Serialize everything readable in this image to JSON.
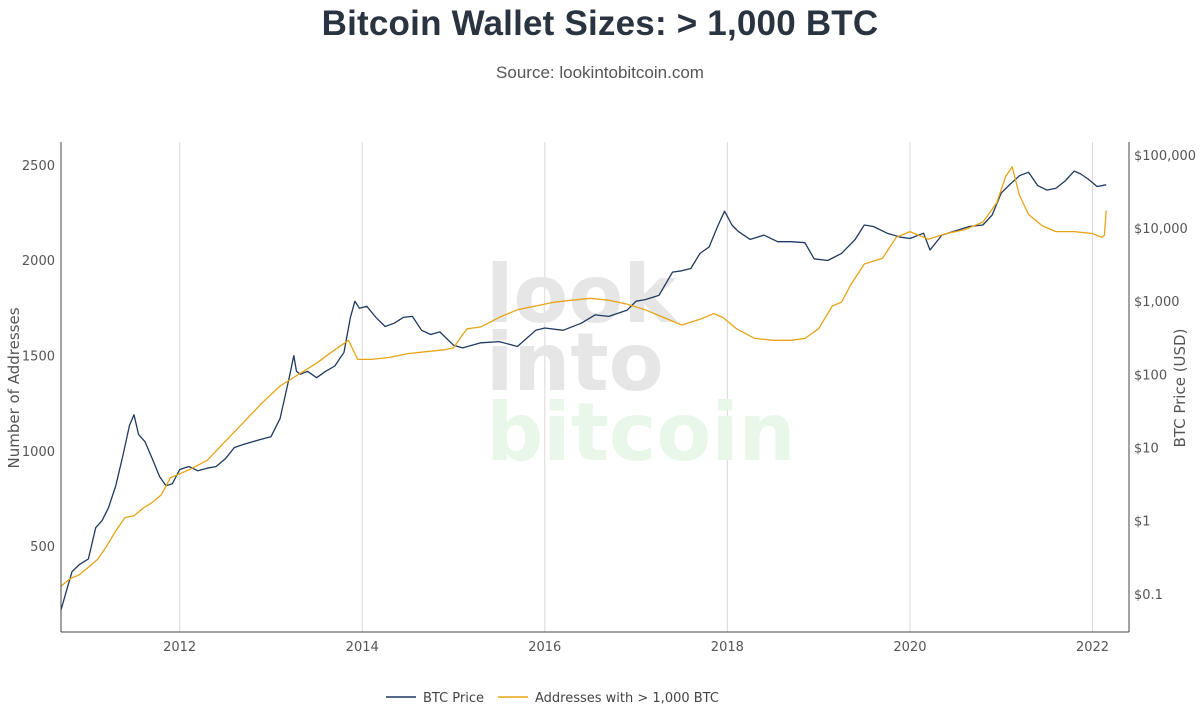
{
  "header": {
    "title": "Bitcoin Wallet Sizes: > 1,000 BTC",
    "subtitle": "Source: lookintobitcoin.com"
  },
  "watermark": {
    "line1": "look",
    "line2": "into",
    "line3": "bitcoin"
  },
  "colors": {
    "price": "#1f3a5f",
    "addresses": "#e8a317",
    "grid": "#d9d9d9",
    "axis": "#444444",
    "watermark_gray": "#e6e6e6",
    "watermark_green": "#e8f7e8"
  },
  "chart_data": {
    "type": "line",
    "title": "Bitcoin Wallet Sizes: > 1,000 BTC",
    "subtitle": "Source: lookintobitcoin.com",
    "x_range": [
      2010.7,
      2022.4
    ],
    "x_ticks": [
      2012,
      2014,
      2016,
      2018,
      2020,
      2022
    ],
    "x_tick_labels": [
      "2012",
      "2014",
      "2016",
      "2018",
      "2020",
      "2022"
    ],
    "y_left": {
      "label": "Number of Addresses",
      "range": [
        50,
        2620
      ],
      "ticks": [
        500,
        1000,
        1500,
        2000,
        2500
      ],
      "tick_labels": [
        "500",
        "1000",
        "1500",
        "2000",
        "2500"
      ]
    },
    "y_right": {
      "label": "BTC Price (USD)",
      "scale": "log",
      "range": [
        0.03,
        150000
      ],
      "ticks": [
        0.1,
        1,
        10,
        100,
        1000,
        10000,
        100000
      ],
      "tick_labels": [
        "$0.1",
        "$1",
        "$10",
        "$100",
        "$1,000",
        "$10,000",
        "$100,000"
      ]
    },
    "grid": "vertical-only",
    "legend_position": "bottom-center",
    "series": [
      {
        "name": "BTC Price",
        "axis": "right",
        "x": [
          2010.7,
          2010.75,
          2010.82,
          2010.9,
          2011.0,
          2011.08,
          2011.15,
          2011.22,
          2011.3,
          2011.38,
          2011.45,
          2011.5,
          2011.55,
          2011.62,
          2011.7,
          2011.78,
          2011.85,
          2011.92,
          2012.0,
          2012.1,
          2012.2,
          2012.3,
          2012.4,
          2012.5,
          2012.6,
          2012.7,
          2012.8,
          2012.9,
          2013.0,
          2013.1,
          2013.2,
          2013.25,
          2013.28,
          2013.32,
          2013.4,
          2013.5,
          2013.6,
          2013.7,
          2013.8,
          2013.87,
          2013.92,
          2013.97,
          2014.05,
          2014.15,
          2014.25,
          2014.35,
          2014.45,
          2014.55,
          2014.65,
          2014.75,
          2014.85,
          2015.0,
          2015.1,
          2015.3,
          2015.5,
          2015.7,
          2015.9,
          2016.0,
          2016.2,
          2016.4,
          2016.55,
          2016.7,
          2016.9,
          2017.0,
          2017.1,
          2017.25,
          2017.4,
          2017.5,
          2017.6,
          2017.7,
          2017.8,
          2017.9,
          2017.97,
          2018.05,
          2018.12,
          2018.25,
          2018.4,
          2018.55,
          2018.7,
          2018.85,
          2018.95,
          2019.1,
          2019.25,
          2019.4,
          2019.5,
          2019.6,
          2019.75,
          2019.9,
          2020.0,
          2020.15,
          2020.22,
          2020.35,
          2020.5,
          2020.65,
          2020.8,
          2020.9,
          2021.0,
          2021.1,
          2021.2,
          2021.3,
          2021.4,
          2021.5,
          2021.6,
          2021.7,
          2021.8,
          2021.87,
          2021.95,
          2022.05,
          2022.15
        ],
        "y": [
          0.06,
          0.1,
          0.2,
          0.25,
          0.3,
          0.8,
          1.0,
          1.5,
          3,
          8,
          20,
          28,
          15,
          12,
          7,
          4,
          3,
          3.2,
          5,
          5.5,
          4.8,
          5.2,
          5.5,
          7,
          10,
          11,
          12,
          13,
          14,
          25,
          90,
          180,
          110,
          100,
          110,
          90,
          110,
          130,
          200,
          600,
          1000,
          800,
          850,
          600,
          450,
          500,
          600,
          620,
          400,
          350,
          380,
          250,
          230,
          270,
          280,
          240,
          400,
          430,
          400,
          500,
          650,
          620,
          750,
          1000,
          1050,
          1200,
          2500,
          2600,
          2800,
          4500,
          5500,
          11000,
          17000,
          11000,
          9000,
          7000,
          8000,
          6500,
          6500,
          6300,
          3800,
          3600,
          4500,
          7000,
          11000,
          10500,
          8500,
          7500,
          7200,
          8500,
          5000,
          8000,
          9200,
          10500,
          11000,
          15000,
          30000,
          40000,
          52000,
          58000,
          38000,
          33000,
          35000,
          44000,
          60000,
          55000,
          47000,
          37000,
          39000
        ]
      },
      {
        "name": "Addresses with > 1,000 BTC",
        "axis": "left",
        "x": [
          2010.7,
          2010.8,
          2010.9,
          2011.0,
          2011.1,
          2011.2,
          2011.3,
          2011.4,
          2011.5,
          2011.6,
          2011.7,
          2011.8,
          2011.9,
          2012.0,
          2012.1,
          2012.3,
          2012.5,
          2012.7,
          2012.9,
          2013.1,
          2013.3,
          2013.5,
          2013.7,
          2013.85,
          2013.95,
          2014.1,
          2014.3,
          2014.5,
          2014.7,
          2014.9,
          2015.0,
          2015.1,
          2015.15,
          2015.3,
          2015.5,
          2015.7,
          2015.9,
          2016.1,
          2016.3,
          2016.5,
          2016.7,
          2016.9,
          2017.1,
          2017.3,
          2017.5,
          2017.7,
          2017.85,
          2017.95,
          2018.1,
          2018.3,
          2018.5,
          2018.7,
          2018.85,
          2019.0,
          2019.15,
          2019.25,
          2019.35,
          2019.5,
          2019.7,
          2019.85,
          2020.0,
          2020.2,
          2020.4,
          2020.6,
          2020.8,
          2020.95,
          2021.05,
          2021.12,
          2021.2,
          2021.3,
          2021.45,
          2021.6,
          2021.8,
          2022.0,
          2022.1,
          2022.13,
          2022.15
        ],
        "y": [
          290,
          330,
          350,
          390,
          430,
          500,
          580,
          650,
          660,
          700,
          730,
          770,
          860,
          880,
          900,
          950,
          1050,
          1150,
          1250,
          1340,
          1400,
          1460,
          1530,
          1580,
          1480,
          1480,
          1490,
          1510,
          1520,
          1530,
          1540,
          1610,
          1640,
          1650,
          1700,
          1740,
          1760,
          1780,
          1790,
          1800,
          1790,
          1770,
          1740,
          1700,
          1660,
          1690,
          1720,
          1700,
          1640,
          1590,
          1580,
          1580,
          1590,
          1640,
          1760,
          1780,
          1870,
          1980,
          2010,
          2120,
          2150,
          2110,
          2140,
          2160,
          2200,
          2300,
          2440,
          2490,
          2340,
          2240,
          2180,
          2150,
          2150,
          2140,
          2120,
          2130,
          2260
        ]
      }
    ]
  },
  "legend": {
    "price_label": "BTC Price",
    "addresses_label": "Addresses with > 1,000 BTC"
  }
}
